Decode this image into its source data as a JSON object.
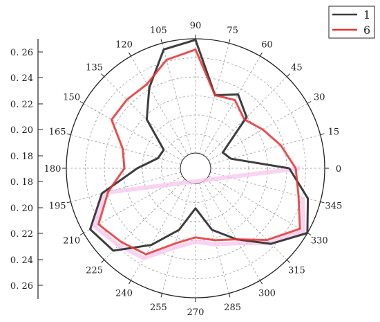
{
  "chart_data": {
    "type": "polar-line",
    "title": "",
    "angle_tick_labels": [
      "0",
      "15",
      "30",
      "45",
      "60",
      "75",
      "90",
      "105",
      "120",
      "135",
      "150",
      "165",
      "180",
      "195",
      "210",
      "225",
      "240",
      "255",
      "270",
      "285",
      "300",
      "315",
      "330",
      "345"
    ],
    "radial_tick_labels": [
      "0. 26",
      "0. 24",
      "0. 22",
      "0. 20",
      "0. 18",
      "0. 18",
      "0. 20",
      "0. 22",
      "0. 24",
      "0. 26"
    ],
    "radial_range": [
      0.16,
      0.266
    ],
    "legend_position": "top-right",
    "grid": true,
    "series": [
      {
        "name": "1",
        "color": "#3d3d3d",
        "points": [
          [
            0,
            0.233
          ],
          [
            15,
            0.18
          ],
          [
            30,
            0.175
          ],
          [
            45,
            0.213
          ],
          [
            60,
            0.225
          ],
          [
            75,
            0.216
          ],
          [
            90,
            0.265
          ],
          [
            105,
            0.26
          ],
          [
            120,
            0.232
          ],
          [
            135,
            0.21
          ],
          [
            150,
            0.18
          ],
          [
            165,
            0.182
          ],
          [
            180,
            0.2
          ],
          [
            195,
            0.236
          ],
          [
            210,
            0.259
          ],
          [
            225,
            0.254
          ],
          [
            240,
            0.228
          ],
          [
            255,
            0.205
          ],
          [
            270,
            0.183
          ],
          [
            285,
            0.205
          ],
          [
            300,
            0.222
          ],
          [
            315,
            0.245
          ],
          [
            330,
            0.266
          ],
          [
            345,
            0.254
          ]
        ]
      },
      {
        "name": "6",
        "color": "#e83030",
        "points": [
          [
            0,
            0.239
          ],
          [
            15,
            0.228
          ],
          [
            30,
            0.218
          ],
          [
            45,
            0.21
          ],
          [
            60,
            0.219
          ],
          [
            75,
            0.216
          ],
          [
            90,
            0.256
          ],
          [
            105,
            0.25
          ],
          [
            120,
            0.236
          ],
          [
            135,
            0.236
          ],
          [
            150,
            0.236
          ],
          [
            165,
            0.216
          ],
          [
            180,
            0.212
          ],
          [
            195,
            0.23
          ],
          [
            210,
            0.25
          ],
          [
            225,
            0.243
          ],
          [
            240,
            0.238
          ],
          [
            255,
            0.218
          ],
          [
            270,
            0.21
          ],
          [
            285,
            0.215
          ],
          [
            300,
            0.222
          ],
          [
            315,
            0.24
          ],
          [
            330,
            0.258
          ],
          [
            345,
            0.245
          ]
        ]
      }
    ]
  }
}
